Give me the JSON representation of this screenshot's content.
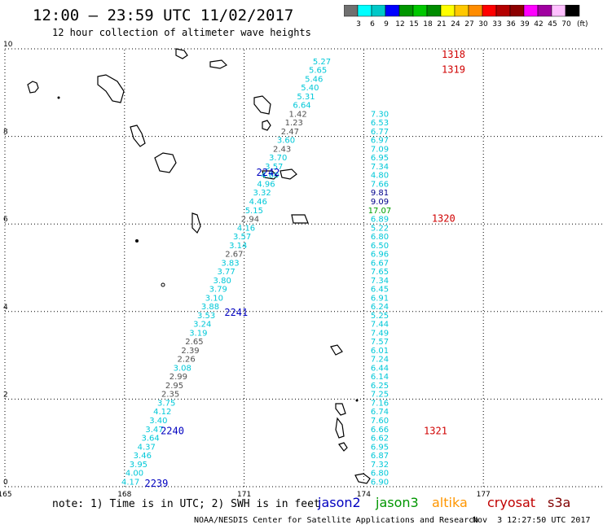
{
  "title": "12:00 – 23:59 UTC 11/02/2017",
  "subtitle": "12 hour collection of altimeter wave heights",
  "colorbar": {
    "colors": [
      "#707070",
      "#00ffff",
      "#00c8c8",
      "#0000ff",
      "#009600",
      "#00c800",
      "#008c00",
      "#ffff00",
      "#ffc800",
      "#ff8c00",
      "#ff0000",
      "#b40000",
      "#8c0000",
      "#ff00ff",
      "#a000a0",
      "#ffc0ff",
      "#000000"
    ],
    "labels": [
      "3",
      "6",
      "9",
      "12",
      "15",
      "18",
      "21",
      "24",
      "27",
      "30",
      "33",
      "36",
      "39",
      "42",
      "45",
      "70"
    ],
    "unit": "(ft)"
  },
  "chart_data": {
    "type": "scatter",
    "x_ticks": [
      "165",
      "168",
      "171",
      "174",
      "177"
    ],
    "y_ticks": [
      "0",
      "2",
      "4",
      "6",
      "8",
      "10"
    ],
    "xlim": [
      165,
      180
    ],
    "ylim": [
      0,
      10
    ],
    "grid": true,
    "tracks": [
      {
        "pass_labels": [
          {
            "label": "2239",
            "x": 168.8,
            "y": 0.0
          },
          {
            "label": "2240",
            "x": 169.2,
            "y": 1.2
          }
        ],
        "points": [
          {
            "x": 168.15,
            "y": 0.05,
            "v": "4.17",
            "c": "cyan"
          },
          {
            "x": 168.25,
            "y": 0.25,
            "v": "4.00",
            "c": "cyan"
          },
          {
            "x": 168.35,
            "y": 0.45,
            "v": "3.95",
            "c": "cyan"
          },
          {
            "x": 168.45,
            "y": 0.65,
            "v": "3.46",
            "c": "cyan"
          },
          {
            "x": 168.55,
            "y": 0.85,
            "v": "4.37",
            "c": "cyan"
          },
          {
            "x": 168.65,
            "y": 1.05,
            "v": "3.64",
            "c": "cyan"
          },
          {
            "x": 168.75,
            "y": 1.25,
            "v": "3.47",
            "c": "cyan"
          },
          {
            "x": 168.85,
            "y": 1.45,
            "v": "3.40",
            "c": "cyan"
          },
          {
            "x": 168.95,
            "y": 1.65,
            "v": "4.12",
            "c": "cyan"
          },
          {
            "x": 169.05,
            "y": 1.85,
            "v": "3.75",
            "c": "cyan"
          },
          {
            "x": 169.15,
            "y": 2.05,
            "v": "2.35",
            "c": "gray"
          },
          {
            "x": 169.25,
            "y": 2.25,
            "v": "2.95",
            "c": "gray"
          },
          {
            "x": 169.35,
            "y": 2.45,
            "v": "2.99",
            "c": "gray"
          },
          {
            "x": 169.45,
            "y": 2.65,
            "v": "3.08",
            "c": "cyan"
          },
          {
            "x": 169.55,
            "y": 2.85,
            "v": "2.26",
            "c": "gray"
          },
          {
            "x": 169.65,
            "y": 3.05,
            "v": "2.39",
            "c": "gray"
          },
          {
            "x": 169.75,
            "y": 3.25,
            "v": "2.65",
            "c": "gray"
          },
          {
            "x": 169.85,
            "y": 3.45,
            "v": "3.19",
            "c": "cyan"
          },
          {
            "x": 169.95,
            "y": 3.65,
            "v": "3.24",
            "c": "cyan"
          },
          {
            "x": 170.05,
            "y": 3.85,
            "v": "3.53",
            "c": "cyan"
          }
        ]
      },
      {
        "pass_labels": [
          {
            "label": "2241",
            "x": 170.8,
            "y": 3.9
          },
          {
            "label": "2242",
            "x": 171.6,
            "y": 7.1
          }
        ],
        "points": [
          {
            "x": 170.15,
            "y": 4.05,
            "v": "3.88",
            "c": "cyan"
          },
          {
            "x": 170.25,
            "y": 4.25,
            "v": "3.10",
            "c": "cyan"
          },
          {
            "x": 170.35,
            "y": 4.45,
            "v": "3.79",
            "c": "cyan"
          },
          {
            "x": 170.45,
            "y": 4.65,
            "v": "3.80",
            "c": "cyan"
          },
          {
            "x": 170.55,
            "y": 4.85,
            "v": "3.77",
            "c": "cyan"
          },
          {
            "x": 170.65,
            "y": 5.05,
            "v": "3.83",
            "c": "cyan"
          },
          {
            "x": 170.75,
            "y": 5.25,
            "v": "2.67",
            "c": "gray"
          },
          {
            "x": 170.85,
            "y": 5.45,
            "v": "3.14",
            "c": "cyan"
          },
          {
            "x": 170.95,
            "y": 5.65,
            "v": "3.57",
            "c": "cyan"
          },
          {
            "x": 171.05,
            "y": 5.85,
            "v": "4.16",
            "c": "cyan"
          },
          {
            "x": 171.15,
            "y": 6.05,
            "v": "2.94",
            "c": "gray"
          },
          {
            "x": 171.25,
            "y": 6.25,
            "v": "5.15",
            "c": "cyan"
          },
          {
            "x": 171.35,
            "y": 6.45,
            "v": "4.46",
            "c": "cyan"
          },
          {
            "x": 171.45,
            "y": 6.65,
            "v": "3.32",
            "c": "cyan"
          },
          {
            "x": 171.55,
            "y": 6.85,
            "v": "4.96",
            "c": "cyan"
          },
          {
            "x": 171.65,
            "y": 7.05,
            "v": "4.60",
            "c": "cyan"
          },
          {
            "x": 171.75,
            "y": 7.25,
            "v": "3.57",
            "c": "cyan"
          },
          {
            "x": 171.85,
            "y": 7.45,
            "v": "3.70",
            "c": "cyan"
          },
          {
            "x": 171.95,
            "y": 7.65,
            "v": "2.43",
            "c": "gray"
          },
          {
            "x": 172.05,
            "y": 7.85,
            "v": "3.60",
            "c": "cyan"
          },
          {
            "x": 172.15,
            "y": 8.05,
            "v": "2.47",
            "c": "gray"
          },
          {
            "x": 172.25,
            "y": 8.25,
            "v": "1.23",
            "c": "gray"
          },
          {
            "x": 172.35,
            "y": 8.45,
            "v": "1.42",
            "c": "gray"
          },
          {
            "x": 172.45,
            "y": 8.65,
            "v": "6.64",
            "c": "cyan"
          },
          {
            "x": 172.55,
            "y": 8.85,
            "v": "5.31",
            "c": "cyan"
          },
          {
            "x": 172.65,
            "y": 9.05,
            "v": "5.40",
            "c": "cyan"
          },
          {
            "x": 172.75,
            "y": 9.25,
            "v": "5.46",
            "c": "cyan"
          },
          {
            "x": 172.85,
            "y": 9.45,
            "v": "5.65",
            "c": "cyan"
          },
          {
            "x": 172.95,
            "y": 9.65,
            "v": "5.27",
            "c": "cyan"
          }
        ]
      },
      {
        "pass_labels": [
          {
            "label": "1318",
            "x": 176.25,
            "y": 9.8
          },
          {
            "label": "1319",
            "x": 176.25,
            "y": 9.45
          },
          {
            "label": "1320",
            "x": 176.0,
            "y": 6.05
          },
          {
            "label": "1321",
            "x": 175.8,
            "y": 1.2
          }
        ],
        "points": [
          {
            "x": 174.4,
            "y": 0.05,
            "v": "6.90",
            "c": "cyan"
          },
          {
            "x": 174.4,
            "y": 0.25,
            "v": "6.80",
            "c": "cyan"
          },
          {
            "x": 174.4,
            "y": 0.45,
            "v": "7.32",
            "c": "cyan"
          },
          {
            "x": 174.4,
            "y": 0.65,
            "v": "6.87",
            "c": "cyan"
          },
          {
            "x": 174.4,
            "y": 0.85,
            "v": "6.95",
            "c": "cyan"
          },
          {
            "x": 174.4,
            "y": 1.05,
            "v": "6.62",
            "c": "cyan"
          },
          {
            "x": 174.4,
            "y": 1.25,
            "v": "6.66",
            "c": "cyan"
          },
          {
            "x": 174.4,
            "y": 1.45,
            "v": "7.60",
            "c": "cyan"
          },
          {
            "x": 174.4,
            "y": 1.65,
            "v": "6.74",
            "c": "cyan"
          },
          {
            "x": 174.4,
            "y": 1.85,
            "v": "7.16",
            "c": "cyan"
          },
          {
            "x": 174.4,
            "y": 2.05,
            "v": "7.25",
            "c": "cyan"
          },
          {
            "x": 174.4,
            "y": 2.25,
            "v": "6.25",
            "c": "cyan"
          },
          {
            "x": 174.4,
            "y": 2.45,
            "v": "6.14",
            "c": "cyan"
          },
          {
            "x": 174.4,
            "y": 2.65,
            "v": "6.44",
            "c": "cyan"
          },
          {
            "x": 174.4,
            "y": 2.85,
            "v": "7.24",
            "c": "cyan"
          },
          {
            "x": 174.4,
            "y": 3.05,
            "v": "6.01",
            "c": "cyan"
          },
          {
            "x": 174.4,
            "y": 3.25,
            "v": "7.57",
            "c": "cyan"
          },
          {
            "x": 174.4,
            "y": 3.45,
            "v": "7.49",
            "c": "cyan"
          },
          {
            "x": 174.4,
            "y": 3.65,
            "v": "7.44",
            "c": "cyan"
          },
          {
            "x": 174.4,
            "y": 3.85,
            "v": "5.25",
            "c": "cyan"
          },
          {
            "x": 174.4,
            "y": 4.05,
            "v": "6.24",
            "c": "cyan"
          },
          {
            "x": 174.4,
            "y": 4.25,
            "v": "6.91",
            "c": "cyan"
          },
          {
            "x": 174.4,
            "y": 4.45,
            "v": "6.45",
            "c": "cyan"
          },
          {
            "x": 174.4,
            "y": 4.65,
            "v": "7.34",
            "c": "cyan"
          },
          {
            "x": 174.4,
            "y": 4.85,
            "v": "7.65",
            "c": "cyan"
          },
          {
            "x": 174.4,
            "y": 5.05,
            "v": "6.67",
            "c": "cyan"
          },
          {
            "x": 174.4,
            "y": 5.25,
            "v": "6.96",
            "c": "cyan"
          },
          {
            "x": 174.4,
            "y": 5.45,
            "v": "6.50",
            "c": "cyan"
          },
          {
            "x": 174.4,
            "y": 5.65,
            "v": "6.80",
            "c": "cyan"
          },
          {
            "x": 174.4,
            "y": 5.85,
            "v": "5.22",
            "c": "cyan"
          },
          {
            "x": 174.4,
            "y": 6.05,
            "v": "6.89",
            "c": "cyan"
          },
          {
            "x": 174.4,
            "y": 6.25,
            "v": "17.07",
            "c": "green"
          },
          {
            "x": 174.4,
            "y": 6.45,
            "v": "9.09",
            "c": "navy"
          },
          {
            "x": 174.4,
            "y": 6.65,
            "v": "9.81",
            "c": "navy"
          },
          {
            "x": 174.4,
            "y": 6.85,
            "v": "7.66",
            "c": "cyan"
          },
          {
            "x": 174.4,
            "y": 7.05,
            "v": "4.80",
            "c": "cyan"
          },
          {
            "x": 174.4,
            "y": 7.25,
            "v": "7.34",
            "c": "cyan"
          },
          {
            "x": 174.4,
            "y": 7.45,
            "v": "6.95",
            "c": "cyan"
          },
          {
            "x": 174.4,
            "y": 7.65,
            "v": "7.09",
            "c": "cyan"
          },
          {
            "x": 174.4,
            "y": 7.85,
            "v": "6.97",
            "c": "cyan"
          },
          {
            "x": 174.4,
            "y": 8.05,
            "v": "6.77",
            "c": "cyan"
          },
          {
            "x": 174.4,
            "y": 8.25,
            "v": "6.53",
            "c": "cyan"
          },
          {
            "x": 174.4,
            "y": 8.45,
            "v": "7.30",
            "c": "cyan"
          }
        ]
      }
    ]
  },
  "value_colors": {
    "cyan": "#00c8d8",
    "gray": "#505050",
    "green": "#00a000",
    "navy": "#00008c"
  },
  "pass_colors": {
    "blue": "#0000c0",
    "red": "#d00000"
  },
  "note": "note: 1) Time is in UTC; 2) SWH is in feet",
  "satellites": [
    {
      "name": "jason2",
      "color": "#0000c0"
    },
    {
      "name": "jason3",
      "color": "#009600"
    },
    {
      "name": "altika",
      "color": "#ff9600"
    },
    {
      "name": "cryosat",
      "color": "#c00000"
    },
    {
      "name": "s3a",
      "color": "#800000"
    }
  ],
  "credit": "NOAA/NESDIS Center for Satellite Applications and Research",
  "timestamp": "Nov  3 12:27:50 UTC 2017"
}
